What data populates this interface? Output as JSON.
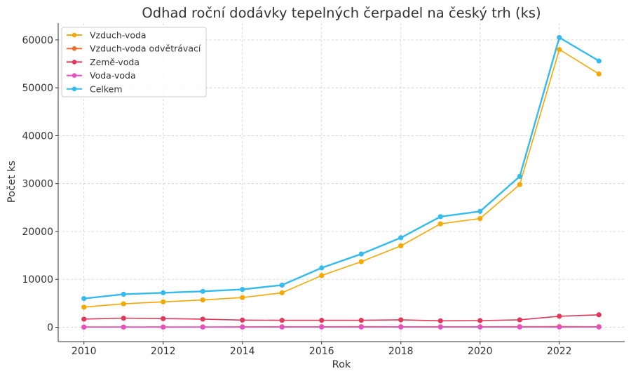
{
  "chart_data": {
    "type": "line",
    "title": "Odhad roční dodávky tepelných čerpadel na český trh (ks)",
    "xlabel": "Rok",
    "ylabel": "Počet ks",
    "x": [
      2010,
      2011,
      2012,
      2013,
      2014,
      2015,
      2016,
      2017,
      2018,
      2019,
      2020,
      2021,
      2022,
      2023
    ],
    "xlim": [
      2009.35,
      2023.65
    ],
    "ylim": [
      -3000,
      63500
    ],
    "xticks": [
      2010,
      2012,
      2014,
      2016,
      2018,
      2020,
      2022
    ],
    "yticks": [
      0,
      10000,
      20000,
      30000,
      40000,
      50000,
      60000
    ],
    "grid": true,
    "legend_position": "top-left",
    "series": [
      {
        "name": "Vzduch-voda",
        "color": "#f5a800",
        "values": [
          4200,
          4900,
          5300,
          5700,
          6200,
          7200,
          10800,
          13700,
          17000,
          21600,
          22700,
          29800,
          58000,
          52900
        ]
      },
      {
        "name": "Vzduch-voda odvětrávací",
        "color": "#ee6a2d",
        "values": [
          60,
          60,
          70,
          80,
          90,
          100,
          110,
          120,
          110,
          100,
          100,
          120,
          130,
          110
        ]
      },
      {
        "name": "Země-voda",
        "color": "#e0385a",
        "values": [
          1700,
          1900,
          1800,
          1700,
          1500,
          1450,
          1450,
          1450,
          1550,
          1350,
          1400,
          1550,
          2300,
          2600
        ]
      },
      {
        "name": "Voda-voda",
        "color": "#e84fc4",
        "values": [
          20,
          30,
          20,
          30,
          30,
          40,
          50,
          50,
          40,
          40,
          40,
          40,
          50,
          40
        ]
      },
      {
        "name": "Celkem",
        "color": "#33bbee",
        "values": [
          6000,
          6900,
          7200,
          7500,
          7900,
          8800,
          12400,
          15300,
          18700,
          23100,
          24200,
          31500,
          60500,
          55600
        ]
      }
    ]
  }
}
